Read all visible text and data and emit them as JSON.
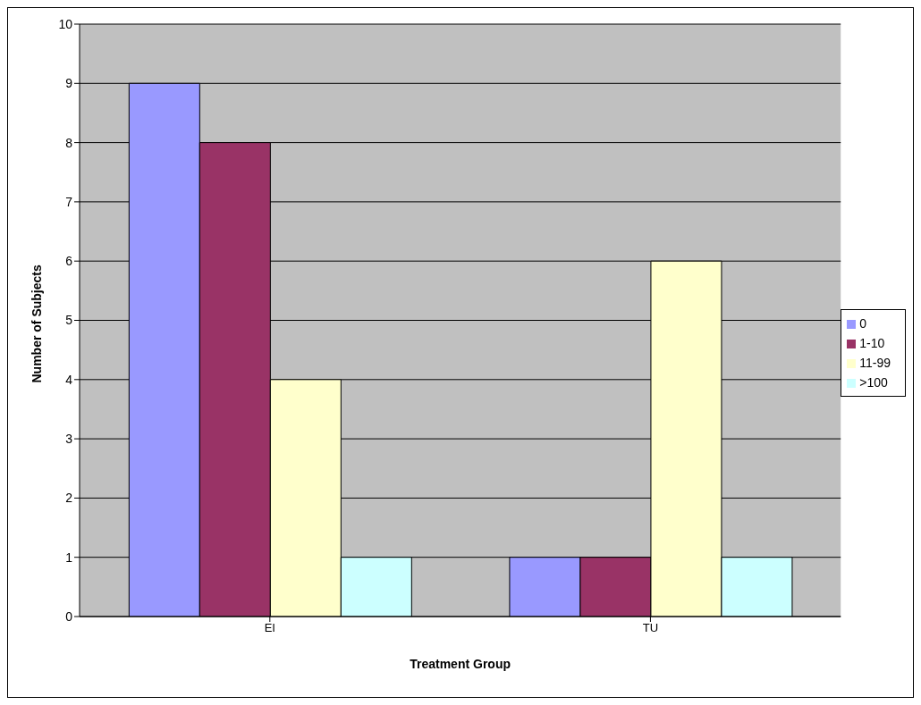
{
  "chart_data": {
    "type": "bar",
    "xlabel": "Treatment Group",
    "ylabel": "Number of Subjects",
    "categories": [
      "EI",
      "TU"
    ],
    "series": [
      {
        "name": "0",
        "color": "#9999ff",
        "values": [
          9,
          1
        ]
      },
      {
        "name": "1-10",
        "color": "#993366",
        "values": [
          8,
          1
        ]
      },
      {
        "name": "11-99",
        "color": "#ffffcc",
        "values": [
          4,
          6
        ]
      },
      {
        "name": ">100",
        "color": "#ccffff",
        "values": [
          1,
          1
        ]
      }
    ],
    "ylim": [
      0,
      10
    ],
    "yticks": [
      0,
      1,
      2,
      3,
      4,
      5,
      6,
      7,
      8,
      9,
      10
    ],
    "grid": "y",
    "legend": "right"
  }
}
